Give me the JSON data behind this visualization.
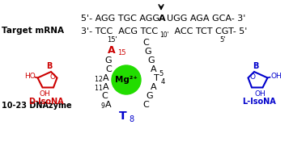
{
  "bg_color": "#ffffff",
  "label_target_mrna": "Target mRNA",
  "label_dnazyme": "10-23 DNAzyme",
  "mg_color": "#22dd00",
  "mg_label": "Mg²⁺",
  "red": "#cc0000",
  "blue": "#0000cc"
}
